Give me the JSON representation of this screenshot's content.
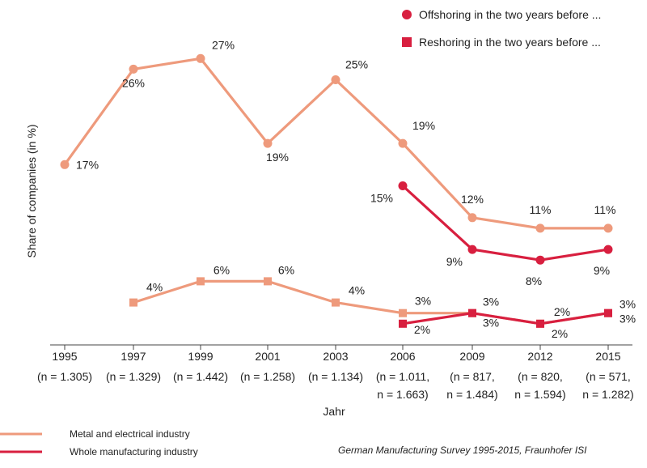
{
  "chart_data": {
    "type": "line",
    "ylabel": "Share of companies (in %)",
    "xlabel": "Jahr",
    "source": "German Manufacturing Survey 1995-2015, Fraunhofer ISI",
    "ylim": [
      0,
      30
    ],
    "categories": [
      {
        "year": "1995",
        "n": [
          "(n = 1.305)"
        ]
      },
      {
        "year": "1997",
        "n": [
          "(n = 1.329)"
        ]
      },
      {
        "year": "1999",
        "n": [
          "(n = 1.442)"
        ]
      },
      {
        "year": "2001",
        "n": [
          "(n = 1.258)"
        ]
      },
      {
        "year": "2003",
        "n": [
          "(n = 1.134)"
        ]
      },
      {
        "year": "2006",
        "n": [
          "(n = 1.011,",
          "n = 1.663)"
        ]
      },
      {
        "year": "2009",
        "n": [
          "(n = 817,",
          "n = 1.484)"
        ]
      },
      {
        "year": "2012",
        "n": [
          "(n = 820,",
          "n = 1.594)"
        ]
      },
      {
        "year": "2015",
        "n": [
          "(n = 571,",
          "n = 1.282)"
        ]
      }
    ],
    "marker_legend": [
      {
        "marker": "circle",
        "label": "Offshoring in the two years before ..."
      },
      {
        "marker": "square",
        "label": "Reshoring in the two years before ..."
      }
    ],
    "industry_legend": [
      {
        "color": "#EE9A7C",
        "label": "Metal and electrical industry"
      },
      {
        "color": "#D81F3F",
        "label": "Whole manufacturing industry"
      }
    ],
    "series": [
      {
        "industry": "Metal and electrical industry",
        "measure": "Offshoring",
        "color": "#EE9A7C",
        "marker": "circle",
        "points": [
          {
            "i": 0,
            "v": 17,
            "label": "17%"
          },
          {
            "i": 1,
            "v": 26,
            "label": "26%"
          },
          {
            "i": 2,
            "v": 27,
            "label": "27%"
          },
          {
            "i": 3,
            "v": 19,
            "label": "19%"
          },
          {
            "i": 4,
            "v": 25,
            "label": "25%"
          },
          {
            "i": 5,
            "v": 19,
            "label": "19%"
          },
          {
            "i": 6,
            "v": 12,
            "label": "12%"
          },
          {
            "i": 7,
            "v": 11,
            "label": "11%"
          },
          {
            "i": 8,
            "v": 11,
            "label": "11%"
          }
        ]
      },
      {
        "industry": "Whole manufacturing industry",
        "measure": "Offshoring",
        "color": "#D81F3F",
        "marker": "circle",
        "points": [
          {
            "i": 5,
            "v": 15,
            "label": "15%"
          },
          {
            "i": 6,
            "v": 9,
            "label": "9%"
          },
          {
            "i": 7,
            "v": 8,
            "label": "8%"
          },
          {
            "i": 8,
            "v": 9,
            "label": "9%"
          }
        ]
      },
      {
        "industry": "Metal and electrical industry",
        "measure": "Reshoring",
        "color": "#EE9A7C",
        "marker": "square",
        "points": [
          {
            "i": 1,
            "v": 4,
            "label": "4%"
          },
          {
            "i": 2,
            "v": 6,
            "label": "6%"
          },
          {
            "i": 3,
            "v": 6,
            "label": "6%"
          },
          {
            "i": 4,
            "v": 4,
            "label": "4%"
          },
          {
            "i": 5,
            "v": 3,
            "label": "3%"
          },
          {
            "i": 6,
            "v": 3,
            "label": "3%"
          },
          {
            "i": 7,
            "v": 2,
            "label": "2%"
          },
          {
            "i": 8,
            "v": 3,
            "label": "3%"
          }
        ]
      },
      {
        "industry": "Whole manufacturing industry",
        "measure": "Reshoring",
        "color": "#D81F3F",
        "marker": "square",
        "points": [
          {
            "i": 5,
            "v": 2,
            "label": "2%"
          },
          {
            "i": 6,
            "v": 3,
            "label": "3%"
          },
          {
            "i": 7,
            "v": 2,
            "label": "2%"
          },
          {
            "i": 8,
            "v": 3,
            "label": "3%"
          }
        ]
      }
    ]
  }
}
